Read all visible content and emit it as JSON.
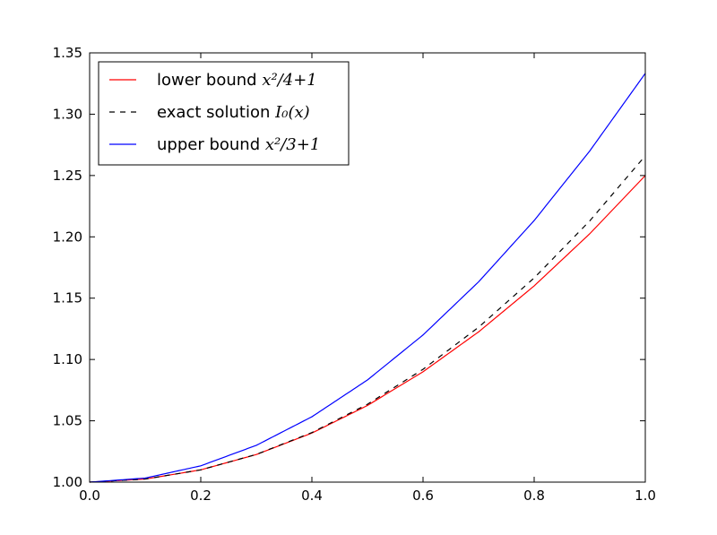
{
  "chart_data": {
    "type": "line",
    "title": "",
    "xlabel": "",
    "ylabel": "",
    "xlim": [
      0.0,
      1.0
    ],
    "ylim": [
      1.0,
      1.35
    ],
    "grid": false,
    "legend_position": "top-left",
    "x_ticks": [
      "0.0",
      "0.2",
      "0.4",
      "0.6",
      "0.8",
      "1.0"
    ],
    "y_ticks": [
      "1.00",
      "1.05",
      "1.10",
      "1.15",
      "1.20",
      "1.25",
      "1.30",
      "1.35"
    ],
    "x": [
      0.0,
      0.1,
      0.2,
      0.3,
      0.4,
      0.5,
      0.6,
      0.7,
      0.8,
      0.9,
      1.0
    ],
    "series": [
      {
        "name": "lower bound x²/4+1",
        "legend_prefix": "lower bound ",
        "legend_math": "x²/4+1",
        "color": "#ff0000",
        "dash": "solid",
        "values": [
          1.0,
          1.0025,
          1.01,
          1.0225,
          1.04,
          1.0625,
          1.09,
          1.1225,
          1.16,
          1.2025,
          1.25
        ]
      },
      {
        "name": "exact solution I₀(x)",
        "legend_prefix": "exact solution ",
        "legend_math": "I₀(x)",
        "color": "#000000",
        "dash": "dashed",
        "values": [
          1.0,
          1.0025,
          1.01,
          1.0226,
          1.0404,
          1.0635,
          1.092,
          1.1263,
          1.1665,
          1.213,
          1.2661
        ]
      },
      {
        "name": "upper bound x²/3+1",
        "legend_prefix": "upper bound ",
        "legend_math": "x²/3+1",
        "color": "#0000ff",
        "dash": "solid",
        "values": [
          1.0,
          1.0033,
          1.0133,
          1.03,
          1.0533,
          1.0833,
          1.12,
          1.1633,
          1.2133,
          1.27,
          1.3333
        ]
      }
    ]
  }
}
